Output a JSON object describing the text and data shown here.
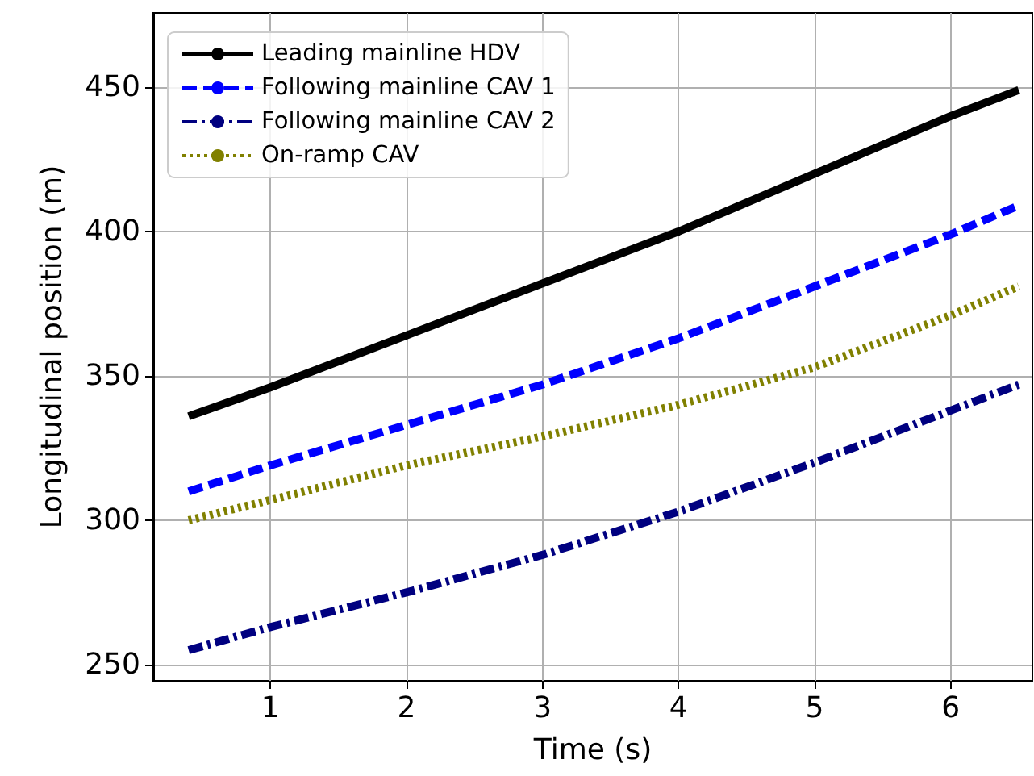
{
  "chart_data": {
    "type": "line",
    "xlabel": "Time (s)",
    "ylabel": "Longitudinal position (m)",
    "xlim": [
      0.14,
      6.6
    ],
    "xticks": [
      1,
      2,
      3,
      4,
      5,
      6
    ],
    "ylim": [
      244.4,
      475.7
    ],
    "yticks": [
      250,
      300,
      350,
      400,
      450
    ],
    "grid": true,
    "legend": "top left",
    "marker": "none",
    "x": [
      0.4,
      1,
      2,
      3,
      4,
      5,
      6,
      6.5
    ],
    "series": [
      {
        "name": "Leading mainline HDV",
        "color": "#000000",
        "line_style": "solid",
        "values": [
          336,
          346,
          364,
          382,
          400,
          420,
          440,
          449
        ]
      },
      {
        "name": "Following mainline CAV 1",
        "color": "#0000ff",
        "line_style": "dashed",
        "values": [
          310,
          319,
          333,
          347,
          363,
          381,
          399,
          409
        ]
      },
      {
        "name": "Following mainline CAV 2",
        "color": "#000080",
        "line_style": "dashdot",
        "values": [
          255,
          263,
          275,
          288,
          303,
          320,
          338,
          347
        ]
      },
      {
        "name": "On-ramp CAV",
        "color": "#808000",
        "line_style": "dotted",
        "values": [
          300,
          307,
          319,
          329,
          340,
          353,
          371,
          381
        ]
      }
    ]
  }
}
